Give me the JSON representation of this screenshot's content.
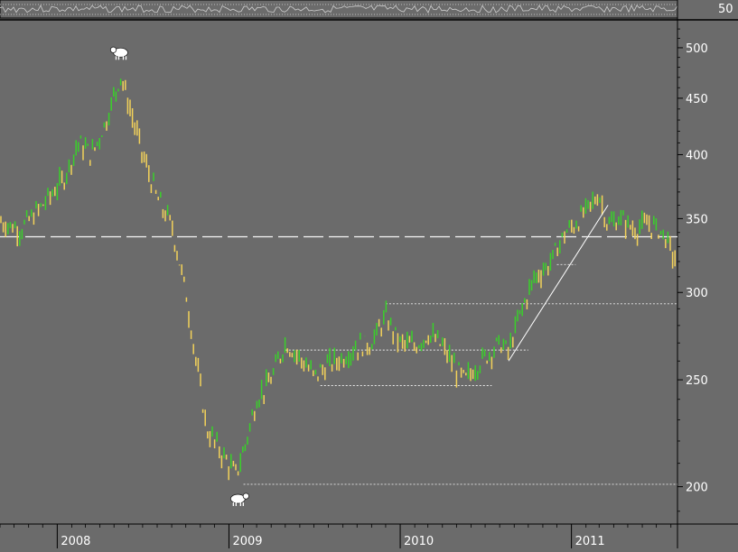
{
  "colors": {
    "background": "#6b6b6b",
    "panel_border": "#000000",
    "up_bar": "#39d12a",
    "down_bar": "#f3d25a",
    "overlay_line": "#ffffff",
    "grid_dotted": "#d8d8d8",
    "text": "#ffffff"
  },
  "indicator": {
    "label": "50"
  },
  "chart_data": {
    "type": "line",
    "scale": "log",
    "ylim": [
      185,
      530
    ],
    "yticks": [
      200,
      250,
      300,
      350,
      400,
      450,
      500
    ],
    "xlabels": [
      "2008",
      "2009",
      "2010",
      "2011"
    ],
    "x_range": [
      "2007-09-01",
      "2011-08-15"
    ],
    "series": [
      {
        "x": [
          "2007-09-01",
          "2007-10-15",
          "2007-12-01",
          "2008-01-15",
          "2008-02-15",
          "2008-03-15",
          "2008-04-15",
          "2008-05-15",
          "2008-06-01",
          "2008-07-01",
          "2008-08-01",
          "2008-09-01",
          "2008-10-01",
          "2008-10-20",
          "2008-11-15",
          "2008-12-15",
          "2009-01-15",
          "2009-02-01",
          "2009-03-01",
          "2009-04-01",
          "2009-05-01",
          "2009-06-01",
          "2009-07-01",
          "2009-08-01",
          "2009-09-01",
          "2009-10-01",
          "2009-11-01",
          "2009-12-01",
          "2010-01-01",
          "2010-02-01",
          "2010-03-01",
          "2010-04-01",
          "2010-05-01",
          "2010-05-20",
          "2010-06-15",
          "2010-07-01",
          "2010-08-01",
          "2010-08-20",
          "2010-09-15",
          "2010-10-15",
          "2010-11-15",
          "2010-12-15",
          "2011-01-15",
          "2011-02-15",
          "2011-03-01",
          "2011-03-20",
          "2011-04-15",
          "2011-05-15",
          "2011-06-15",
          "2011-07-15",
          "2011-08-15"
        ],
        "y": [
          348,
          342,
          360,
          380,
          410,
          400,
          430,
          472,
          445,
          400,
          365,
          345,
          300,
          265,
          225,
          215,
          205,
          215,
          240,
          250,
          270,
          262,
          252,
          258,
          262,
          268,
          270,
          285,
          270,
          268,
          275,
          268,
          255,
          250,
          258,
          262,
          270,
          265,
          288,
          310,
          318,
          338,
          348,
          362,
          368,
          345,
          350,
          342,
          346,
          340,
          318
        ]
      }
    ],
    "annotations": {
      "horizontal_lines": [
        {
          "value": 337,
          "style": "dashed",
          "from": "2007-09-01",
          "to": "2011-08-15"
        },
        {
          "value": 293,
          "style": "dotted",
          "from": "2009-12-01",
          "to": "2011-08-15"
        },
        {
          "value": 266,
          "style": "dotted",
          "from": "2009-05-01",
          "to": "2010-10-01"
        },
        {
          "value": 247,
          "style": "dotted",
          "from": "2009-07-15",
          "to": "2010-07-15"
        },
        {
          "value": 318,
          "style": "dotted",
          "from": "2010-12-01",
          "to": "2011-01-10"
        },
        {
          "value": 201,
          "style": "dotted",
          "from": "2009-02-01",
          "to": "2011-08-15"
        }
      ],
      "trendline": {
        "from": [
          "2010-08-20",
          260
        ],
        "to": [
          "2011-03-20",
          360
        ]
      },
      "icons": [
        {
          "name": "bear-icon",
          "date": "2008-05-15",
          "value": 495
        },
        {
          "name": "bull-icon",
          "date": "2009-01-20",
          "value": 195
        }
      ]
    }
  }
}
